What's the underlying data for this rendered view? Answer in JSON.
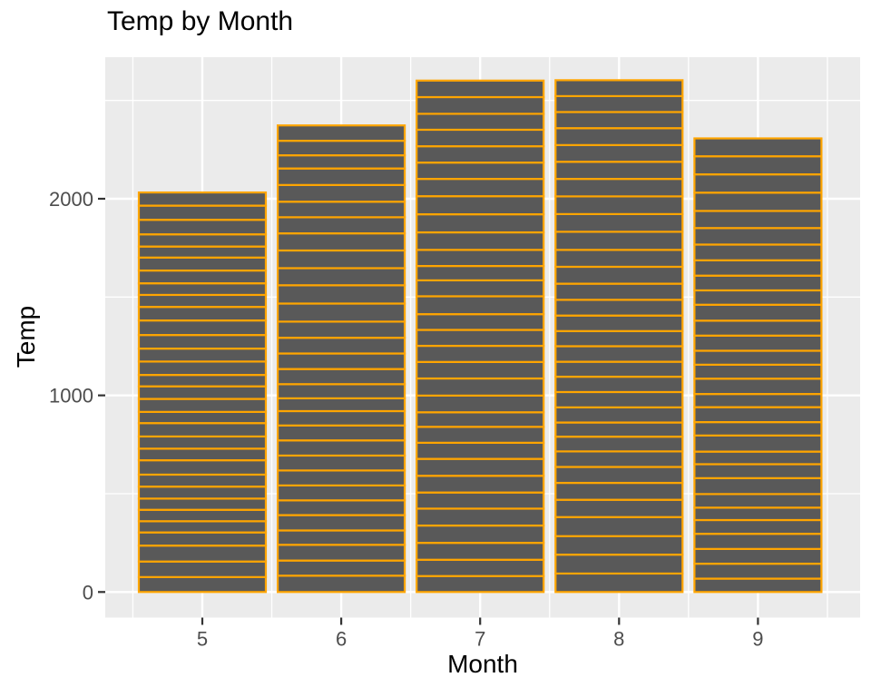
{
  "chart_data": {
    "type": "bar",
    "variant": "stacked-segments",
    "title": "Temp by Month",
    "xlabel": "Month",
    "ylabel": "Temp",
    "categories": [
      5,
      6,
      7,
      8,
      9
    ],
    "totals": [
      2032,
      2373,
      2601,
      2603,
      2307
    ],
    "segments": [
      [
        67,
        72,
        74,
        62,
        56,
        66,
        65,
        59,
        61,
        69,
        74,
        69,
        66,
        68,
        58,
        64,
        66,
        57,
        68,
        62,
        59,
        73,
        61,
        61,
        57,
        58,
        57,
        67,
        81,
        79,
        76
      ],
      [
        78,
        74,
        67,
        84,
        85,
        79,
        82,
        87,
        90,
        87,
        93,
        92,
        82,
        80,
        79,
        77,
        72,
        65,
        73,
        76,
        77,
        76,
        76,
        76,
        75,
        78,
        73,
        80,
        77,
        83
      ],
      [
        84,
        85,
        81,
        84,
        83,
        83,
        88,
        92,
        92,
        89,
        82,
        73,
        81,
        91,
        80,
        81,
        82,
        84,
        87,
        85,
        74,
        81,
        82,
        86,
        85,
        82,
        86,
        88,
        86,
        83,
        81
      ],
      [
        81,
        81,
        82,
        86,
        85,
        87,
        89,
        90,
        90,
        92,
        86,
        86,
        82,
        80,
        79,
        77,
        79,
        76,
        78,
        78,
        77,
        72,
        75,
        79,
        81,
        86,
        88,
        97,
        94,
        96,
        94
      ],
      [
        91,
        92,
        93,
        93,
        87,
        84,
        80,
        78,
        75,
        73,
        81,
        76,
        77,
        71,
        71,
        78,
        67,
        76,
        68,
        82,
        64,
        71,
        81,
        69,
        63,
        70,
        77,
        75,
        76,
        68
      ]
    ],
    "x_tick_labels": [
      "5",
      "6",
      "7",
      "8",
      "9"
    ],
    "y_ticks": [
      {
        "value": 0,
        "label": "0"
      },
      {
        "value": 1000,
        "label": "1000"
      },
      {
        "value": 2000,
        "label": "2000"
      }
    ],
    "y_grid_minor": [
      500,
      1500,
      2500
    ],
    "x_grid_minor": [
      4.5,
      5.5,
      6.5,
      7.5,
      8.5,
      9.5
    ],
    "xlim": [
      4.3,
      9.7
    ],
    "ylim": [
      -130,
      2720
    ],
    "bar_width": 0.9,
    "grid": true,
    "legend": "none",
    "colors": {
      "bar_fill": "#595959",
      "bar_border": "#FFA500",
      "panel_background": "#EBEBEB",
      "gridline": "#FFFFFF",
      "tick_label": "#4D4D4D",
      "tick_mark": "#333333",
      "title_text": "#000000",
      "page_background": "#FFFFFF"
    }
  }
}
